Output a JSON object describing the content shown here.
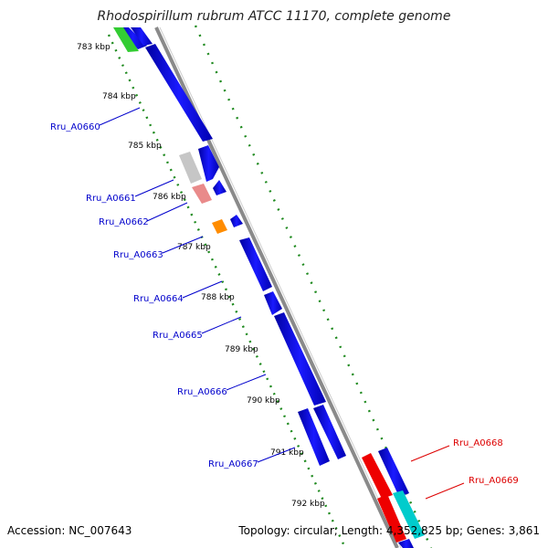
{
  "title": "Rhodospirillum rubrum ATCC 11170, complete genome",
  "footer": {
    "accession": "Accession: NC_007643",
    "topology": "Topology: circular; Length: 4,352,825 bp; Genes: 3,861"
  },
  "ticks": [
    "783 kbp",
    "784 kbp",
    "785 kbp",
    "786 kbp",
    "787 kbp",
    "788 kbp",
    "789 kbp",
    "790 kbp",
    "791 kbp",
    "792 kbp"
  ],
  "genes": [
    {
      "label": "Rru_A0660",
      "color": "#0000cc"
    },
    {
      "label": "Rru_A0661",
      "color": "#0000cc"
    },
    {
      "label": "Rru_A0662",
      "color": "#0000cc"
    },
    {
      "label": "Rru_A0663",
      "color": "#0000cc"
    },
    {
      "label": "Rru_A0664",
      "color": "#0000cc"
    },
    {
      "label": "Rru_A0665",
      "color": "#0000cc"
    },
    {
      "label": "Rru_A0666",
      "color": "#0000cc"
    },
    {
      "label": "Rru_A0667",
      "color": "#0000cc"
    },
    {
      "label": "Rru_A0668",
      "color": "#dd0000"
    },
    {
      "label": "Rru_A0669",
      "color": "#dd0000"
    }
  ],
  "colors": {
    "forward_gene": "#0000ee",
    "reverse_gene_grey": "#c8c8c8",
    "reverse_gene_pink": "#e88080",
    "orange_gene": "#ff8c00",
    "green_gene": "#33cc33",
    "red_gene": "#ee0000",
    "cyan_gene": "#00cccc",
    "backbone": "#8c8c8c",
    "dots": "#1f8a1f"
  }
}
